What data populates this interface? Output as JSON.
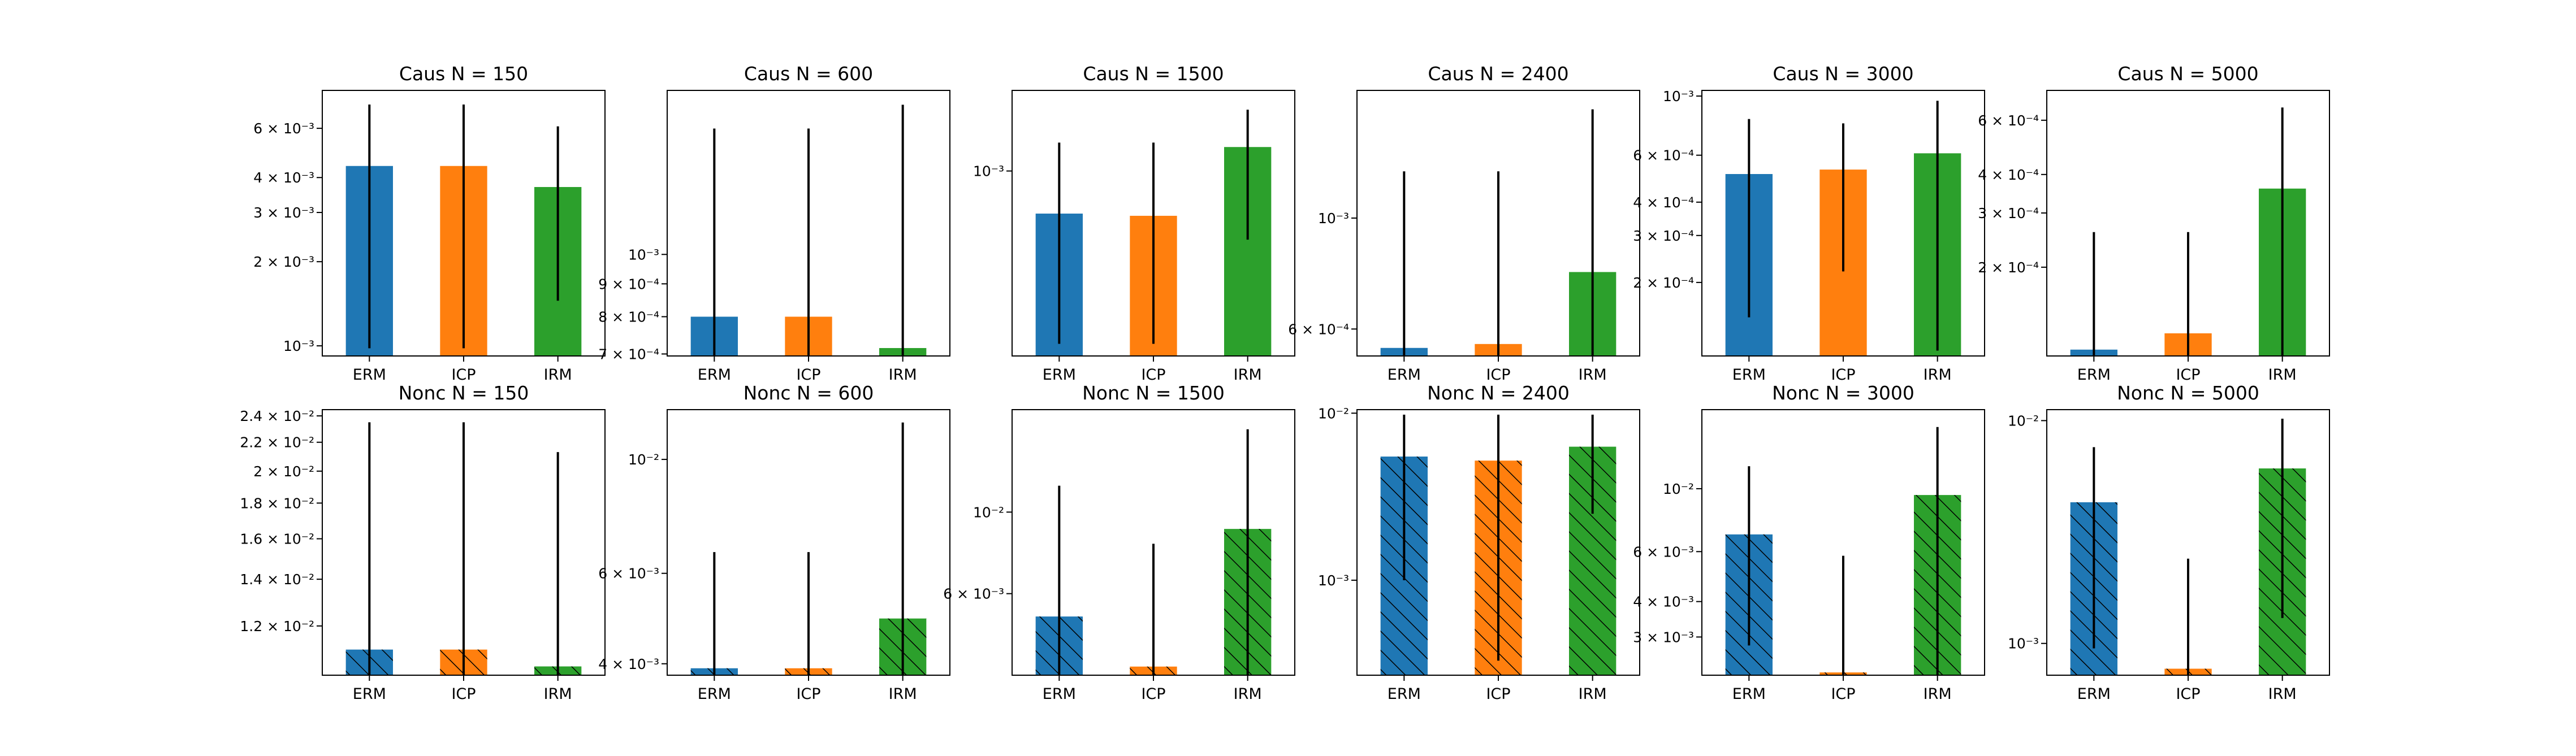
{
  "colors": {
    "ERM": "#1f77b4",
    "ICP": "#ff7f0e",
    "IRM": "#2ca02c"
  },
  "chart_data": [
    {
      "type": "bar",
      "title": "Caus N = 150",
      "yscale": "log",
      "ylim": [
        0.00092,
        0.0082
      ],
      "categories": [
        "ERM",
        "ICP",
        "IRM"
      ],
      "values": [
        0.0044,
        0.0044,
        0.0037
      ],
      "error_low": [
        0.00098,
        0.00098,
        0.00145
      ],
      "error_high": [
        0.0073,
        0.0073,
        0.0061
      ],
      "hatch": false,
      "ticks": [
        {
          "value": 0.001,
          "label": "10⁻³"
        },
        {
          "value": 0.002,
          "label": "2 × 10⁻³"
        },
        {
          "value": 0.003,
          "label": "3 × 10⁻³"
        },
        {
          "value": 0.004,
          "label": "4 × 10⁻³"
        },
        {
          "value": 0.006,
          "label": "6 × 10⁻³"
        }
      ]
    },
    {
      "type": "bar",
      "title": "Caus N = 600",
      "yscale": "log",
      "ylim": [
        0.000695,
        0.0018
      ],
      "categories": [
        "ERM",
        "ICP",
        "IRM"
      ],
      "values": [
        0.0008,
        0.0008,
        0.000715
      ],
      "error_low": [
        0.000695,
        0.000695,
        0.000695
      ],
      "error_high": [
        0.00157,
        0.00157,
        0.00171
      ],
      "hatch": false,
      "ticks": [
        {
          "value": 0.0007,
          "label": "7 × 10⁻⁴"
        },
        {
          "value": 0.0008,
          "label": "8 × 10⁻⁴"
        },
        {
          "value": 0.0009,
          "label": "9 × 10⁻⁴"
        },
        {
          "value": 0.001,
          "label": "10⁻³"
        }
      ]
    },
    {
      "type": "bar",
      "title": "Caus N = 1500",
      "yscale": "log",
      "ylim": [
        0.00034,
        0.0016
      ],
      "categories": [
        "ERM",
        "ICP",
        "IRM"
      ],
      "values": [
        0.00078,
        0.00077,
        0.00115
      ],
      "error_low": [
        0.000365,
        0.000365,
        0.00067
      ],
      "error_high": [
        0.00118,
        0.00118,
        0.00143
      ],
      "hatch": false,
      "ticks": [
        {
          "value": 0.001,
          "label": "10⁻³"
        }
      ]
    },
    {
      "type": "bar",
      "title": "Caus N = 2400",
      "yscale": "log",
      "ylim": [
        0.00053,
        0.0018
      ],
      "categories": [
        "ERM",
        "ICP",
        "IRM"
      ],
      "values": [
        0.00055,
        0.00056,
        0.00078
      ],
      "error_low": [
        0.00053,
        0.00053,
        0.00053
      ],
      "error_high": [
        0.00124,
        0.00124,
        0.00165
      ],
      "hatch": false,
      "ticks": [
        {
          "value": 0.0006,
          "label": "6 × 10⁻⁴"
        },
        {
          "value": 0.001,
          "label": "10⁻³"
        }
      ]
    },
    {
      "type": "bar",
      "title": "Caus N = 3000",
      "yscale": "log",
      "ylim": [
        0.000106,
        0.00105
      ],
      "categories": [
        "ERM",
        "ICP",
        "IRM"
      ],
      "values": [
        0.00051,
        0.00053,
        0.00061
      ],
      "error_low": [
        0.000148,
        0.00022,
        0.000111
      ],
      "error_high": [
        0.00082,
        0.00079,
        0.00096
      ],
      "hatch": false,
      "ticks": [
        {
          "value": 0.0002,
          "label": "2 × 10⁻⁴"
        },
        {
          "value": 0.0003,
          "label": "3 × 10⁻⁴"
        },
        {
          "value": 0.0004,
          "label": "4 × 10⁻⁴"
        },
        {
          "value": 0.0006,
          "label": "6 × 10⁻⁴"
        },
        {
          "value": 0.001,
          "label": "10⁻³"
        }
      ]
    },
    {
      "type": "bar",
      "title": "Caus N = 5000",
      "yscale": "log",
      "ylim": [
        0.000103,
        0.00075
      ],
      "categories": [
        "ERM",
        "ICP",
        "IRM"
      ],
      "values": [
        0.000108,
        0.000122,
        0.00036
      ],
      "error_low": [
        0.000103,
        0.000103,
        0.000103
      ],
      "error_high": [
        0.00026,
        0.00026,
        0.00066
      ],
      "hatch": false,
      "ticks": [
        {
          "value": 0.0002,
          "label": "2 × 10⁻⁴"
        },
        {
          "value": 0.0003,
          "label": "3 × 10⁻⁴"
        },
        {
          "value": 0.0004,
          "label": "4 × 10⁻⁴"
        },
        {
          "value": 0.0006,
          "label": "6 × 10⁻⁴"
        }
      ]
    },
    {
      "type": "bar",
      "title": "Nonc N = 150",
      "yscale": "log",
      "ylim": [
        0.0102,
        0.0245
      ],
      "categories": [
        "ERM",
        "ICP",
        "IRM"
      ],
      "values": [
        0.0111,
        0.0111,
        0.0105
      ],
      "error_low": [
        0.0102,
        0.0102,
        0.0102
      ],
      "error_high": [
        0.0235,
        0.0235,
        0.0213
      ],
      "hatch": true,
      "ticks": [
        {
          "value": 0.012,
          "label": "1.2 × 10⁻²"
        },
        {
          "value": 0.014,
          "label": "1.4 × 10⁻²"
        },
        {
          "value": 0.016,
          "label": "1.6 × 10⁻²"
        },
        {
          "value": 0.018,
          "label": "1.8 × 10⁻²"
        },
        {
          "value": 0.02,
          "label": "2 × 10⁻²"
        },
        {
          "value": 0.022,
          "label": "2.2 × 10⁻²"
        },
        {
          "value": 0.024,
          "label": "2.4 × 10⁻²"
        }
      ]
    },
    {
      "type": "bar",
      "title": "Nonc N = 600",
      "yscale": "log",
      "ylim": [
        0.0038,
        0.0125
      ],
      "categories": [
        "ERM",
        "ICP",
        "IRM"
      ],
      "values": [
        0.00392,
        0.00392,
        0.0049
      ],
      "error_low": [
        0.0038,
        0.0038,
        0.0038
      ],
      "error_high": [
        0.0066,
        0.0066,
        0.0118
      ],
      "hatch": true,
      "ticks": [
        {
          "value": 0.004,
          "label": "4 × 10⁻³"
        },
        {
          "value": 0.006,
          "label": "6 × 10⁻³"
        },
        {
          "value": 0.01,
          "label": "10⁻²"
        }
      ]
    },
    {
      "type": "bar",
      "title": "Nonc N = 1500",
      "yscale": "log",
      "ylim": [
        0.0036,
        0.019
      ],
      "categories": [
        "ERM",
        "ICP",
        "IRM"
      ],
      "values": [
        0.0052,
        0.0038,
        0.009
      ],
      "error_low": [
        0.0036,
        0.0036,
        0.0036
      ],
      "error_high": [
        0.0118,
        0.0082,
        0.0168
      ],
      "hatch": true,
      "ticks": [
        {
          "value": 0.006,
          "label": "6 × 10⁻³"
        },
        {
          "value": 0.01,
          "label": "10⁻²"
        }
      ]
    },
    {
      "type": "bar",
      "title": "Nonc N = 2400",
      "yscale": "log",
      "ylim": [
        0.00027,
        0.0105
      ],
      "categories": [
        "ERM",
        "ICP",
        "IRM"
      ],
      "values": [
        0.0055,
        0.0052,
        0.0063
      ],
      "error_low": [
        0.001,
        0.00033,
        0.0025
      ],
      "error_high": [
        0.0098,
        0.0098,
        0.0098
      ],
      "hatch": true,
      "ticks": [
        {
          "value": 0.001,
          "label": "10⁻³"
        },
        {
          "value": 0.01,
          "label": "10⁻²"
        }
      ]
    },
    {
      "type": "bar",
      "title": "Nonc N = 3000",
      "yscale": "log",
      "ylim": [
        0.0022,
        0.019
      ],
      "categories": [
        "ERM",
        "ICP",
        "IRM"
      ],
      "values": [
        0.0069,
        0.00225,
        0.0095
      ],
      "error_low": [
        0.0028,
        0.0022,
        0.0022
      ],
      "error_high": [
        0.012,
        0.0058,
        0.0165
      ],
      "hatch": true,
      "ticks": [
        {
          "value": 0.003,
          "label": "3 × 10⁻³"
        },
        {
          "value": 0.004,
          "label": "4 × 10⁻³"
        },
        {
          "value": 0.006,
          "label": "6 × 10⁻³"
        },
        {
          "value": 0.01,
          "label": "10⁻²"
        }
      ]
    },
    {
      "type": "bar",
      "title": "Nonc N = 5000",
      "yscale": "log",
      "ylim": [
        0.00072,
        0.0112
      ],
      "categories": [
        "ERM",
        "ICP",
        "IRM"
      ],
      "values": [
        0.0043,
        0.00077,
        0.0061
      ],
      "error_low": [
        0.00095,
        0.00072,
        0.0013
      ],
      "error_high": [
        0.0076,
        0.0024,
        0.0102
      ],
      "hatch": true,
      "ticks": [
        {
          "value": 0.001,
          "label": "10⁻³"
        },
        {
          "value": 0.01,
          "label": "10⁻²"
        }
      ]
    }
  ]
}
